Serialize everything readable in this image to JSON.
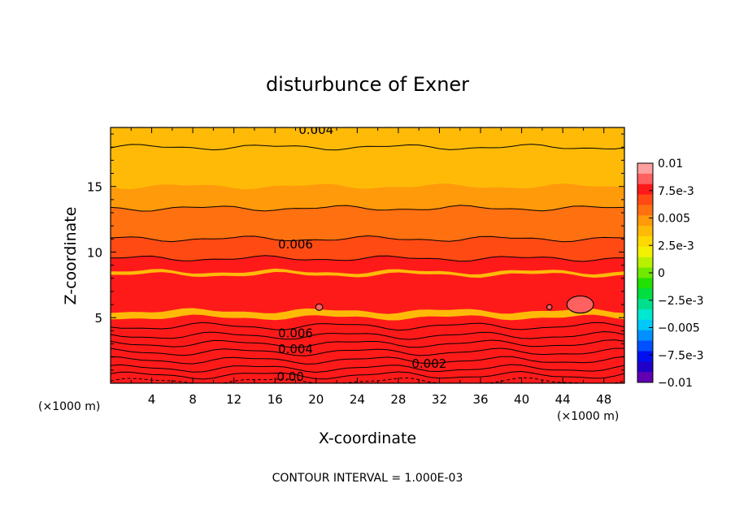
{
  "chart_data": {
    "type": "heatmap",
    "subtype": "filled-contour",
    "title": "disturbunce of Exner",
    "xlabel": "X-coordinate",
    "ylabel": "Z-coordinate",
    "x_unit_left": "(×1000 m)",
    "x_unit_right": "(×1000 m)",
    "footer": "CONTOUR INTERVAL = 1.000E-03",
    "xlim": [
      0,
      50
    ],
    "ylim": [
      0,
      19.5
    ],
    "x_ticks": [
      4,
      8,
      12,
      16,
      20,
      24,
      28,
      32,
      36,
      40,
      44,
      48
    ],
    "y_ticks": [
      5,
      10,
      15
    ],
    "grid": false,
    "contour_interval": 0.001,
    "colorbar": {
      "placement": "right",
      "min": -0.01,
      "max": 0.01,
      "labels": [
        "0.01",
        "7.5e-3",
        "0.005",
        "2.5e-3",
        "0",
        "−2.5e-3",
        "−0.005",
        "−7.5e-3",
        "−0.01"
      ],
      "label_values": [
        0.01,
        0.0075,
        0.005,
        0.0025,
        0,
        -0.0025,
        -0.005,
        -0.0075,
        -0.01
      ],
      "colors": [
        "#ffa0a0",
        "#ff6060",
        "#ff1a1a",
        "#ff4a14",
        "#ff7010",
        "#ff9a0a",
        "#ffba08",
        "#ffd800",
        "#f2f200",
        "#b8f000",
        "#70e800",
        "#22e000",
        "#00de40",
        "#00e08c",
        "#00e8d0",
        "#00c8f8",
        "#0090ff",
        "#0050ff",
        "#0010f0",
        "#2000c8",
        "#6000b0"
      ]
    },
    "profile": {
      "z": [
        0,
        0.3,
        0.6,
        1,
        1.5,
        2,
        2.5,
        3,
        3.5,
        4,
        4.5,
        5,
        6,
        7,
        8,
        9,
        10,
        11,
        12,
        13,
        14,
        15,
        16,
        17,
        18,
        19,
        19.5
      ],
      "value": [
        -0.0003,
        0.0004,
        0.001,
        0.0018,
        0.0026,
        0.0034,
        0.0042,
        0.005,
        0.0058,
        0.0066,
        0.0072,
        0.0075,
        0.0077,
        0.0078,
        0.0077,
        0.0073,
        0.0067,
        0.006,
        0.0055,
        0.0051,
        0.0048,
        0.0045,
        0.0043,
        0.0042,
        0.004,
        0.0038,
        0.0036
      ]
    },
    "contour_labels": [
      {
        "text": "0.004",
        "x": 20,
        "z": 19.3
      },
      {
        "text": "0.006",
        "x": 18,
        "z": 10.6
      },
      {
        "text": "0.006",
        "x": 18,
        "z": 3.8
      },
      {
        "text": "0.004",
        "x": 18,
        "z": 2.6
      },
      {
        "text": "0.002",
        "x": 31,
        "z": 1.5
      },
      {
        "text": "0.00",
        "x": 17.5,
        "z": 0.5
      }
    ],
    "closed_contours": [
      {
        "x": 20.3,
        "z": 5.8,
        "rx": 0.35,
        "rz": 0.25
      },
      {
        "x": 42.7,
        "z": 5.8,
        "rx": 0.25,
        "rz": 0.2
      },
      {
        "x": 45.7,
        "z": 6.0,
        "rx": 1.3,
        "rz": 0.65
      }
    ]
  }
}
